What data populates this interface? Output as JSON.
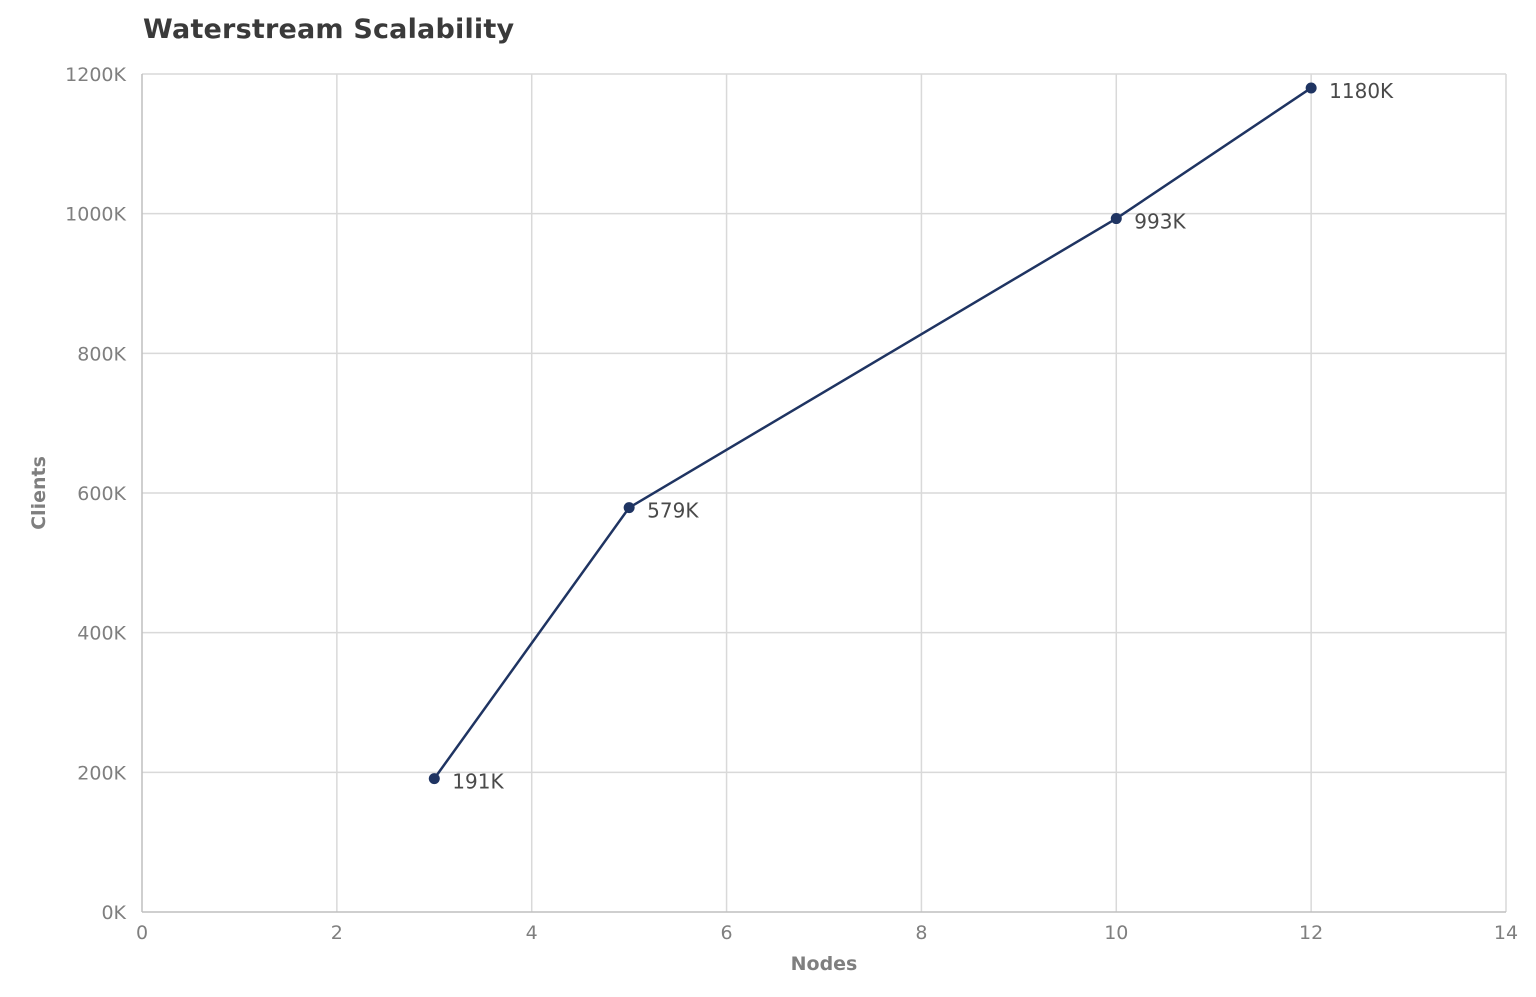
{
  "chart_data": {
    "type": "line",
    "title": "Waterstream Scalability",
    "xlabel": "Nodes",
    "ylabel": "Clients",
    "xlim": [
      0,
      14
    ],
    "ylim": [
      0,
      1200
    ],
    "x_ticks": [
      0,
      2,
      4,
      6,
      8,
      10,
      12,
      14
    ],
    "x_tick_labels": [
      "0",
      "2",
      "4",
      "6",
      "8",
      "10",
      "12",
      "14"
    ],
    "y_ticks": [
      0,
      200,
      400,
      600,
      800,
      1000,
      1200
    ],
    "y_tick_labels": [
      "0K",
      "200K",
      "400K",
      "600K",
      "800K",
      "1000K",
      "1200K"
    ],
    "grid": true,
    "legend": "none",
    "series": [
      {
        "color": "#1f3462",
        "x": [
          3,
          5,
          10,
          12
        ],
        "y": [
          191,
          579,
          993,
          1180
        ],
        "labels": [
          "191K",
          "579K",
          "993K",
          "1180K"
        ]
      }
    ]
  }
}
